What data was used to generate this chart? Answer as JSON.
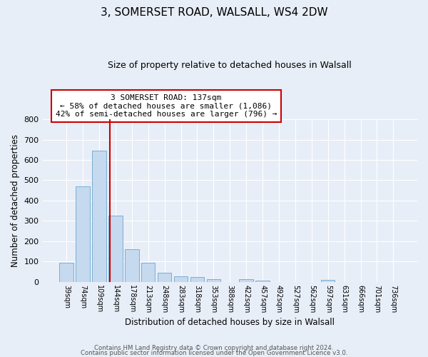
{
  "title1": "3, SOMERSET ROAD, WALSALL, WS4 2DW",
  "title2": "Size of property relative to detached houses in Walsall",
  "xlabel": "Distribution of detached houses by size in Walsall",
  "ylabel": "Number of detached properties",
  "bar_labels": [
    "39sqm",
    "74sqm",
    "109sqm",
    "144sqm",
    "178sqm",
    "213sqm",
    "248sqm",
    "283sqm",
    "318sqm",
    "353sqm",
    "388sqm",
    "422sqm",
    "457sqm",
    "492sqm",
    "527sqm",
    "562sqm",
    "597sqm",
    "631sqm",
    "666sqm",
    "701sqm",
    "736sqm"
  ],
  "bar_values": [
    95,
    470,
    645,
    325,
    160,
    92,
    43,
    28,
    22,
    14,
    0,
    13,
    5,
    0,
    0,
    0,
    8,
    0,
    0,
    0,
    0
  ],
  "bar_color": "#c5d9ef",
  "annotation_title": "3 SOMERSET ROAD: 137sqm",
  "annotation_line1": "← 58% of detached houses are smaller (1,086)",
  "annotation_line2": "42% of semi-detached houses are larger (796) →",
  "property_line_color": "#cc0000",
  "ylim": [
    0,
    800
  ],
  "yticks": [
    0,
    100,
    200,
    300,
    400,
    500,
    600,
    700,
    800
  ],
  "footer1": "Contains HM Land Registry data © Crown copyright and database right 2024.",
  "footer2": "Contains public sector information licensed under the Open Government Licence v3.0.",
  "bg_color": "#e8eef7",
  "plot_bg_color": "#e8eef7",
  "bar_edge_color": "#7aafd4",
  "line_x_index": 2.65
}
